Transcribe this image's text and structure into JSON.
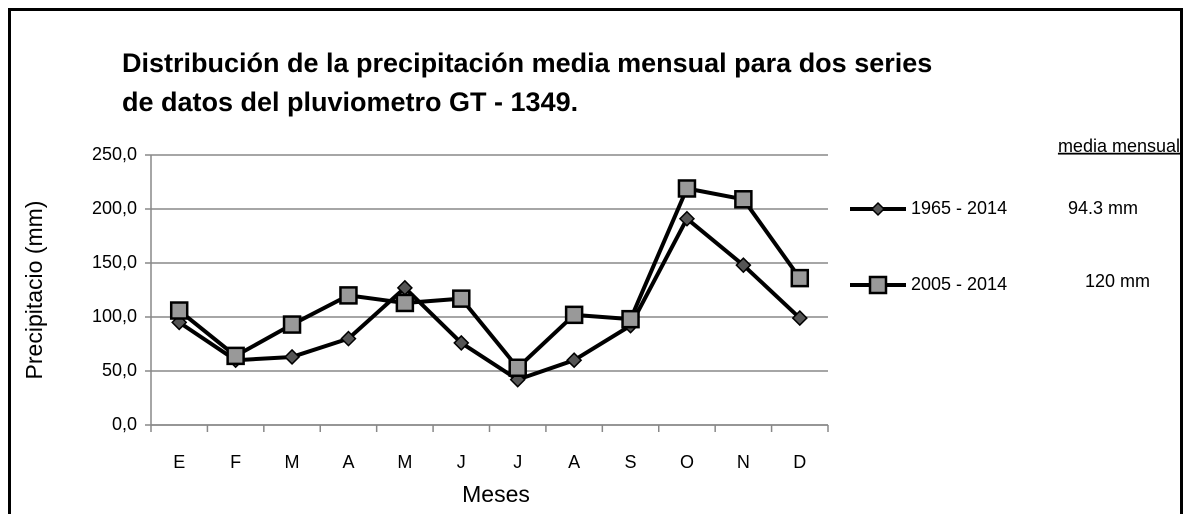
{
  "chart_data": {
    "type": "line",
    "title": [
      "Distribución de la precipitación media mensual para dos  series",
      "de datos  del pluviometro GT - 1349."
    ],
    "x_label": "Meses",
    "y_label": "Precipitacio (mm)",
    "categories": [
      "E",
      "F",
      "M",
      "A",
      "M",
      "J",
      "J",
      "A",
      "S",
      "O",
      "N",
      "D"
    ],
    "ylim": [
      0,
      250
    ],
    "yticks": [
      {
        "value": 0,
        "label": "0,0"
      },
      {
        "value": 50,
        "label": "50,0"
      },
      {
        "value": 100,
        "label": "100,0"
      },
      {
        "value": 150,
        "label": "150,0"
      },
      {
        "value": 200,
        "label": "200,0"
      },
      {
        "value": 250,
        "label": "250,0"
      }
    ],
    "grid": true,
    "legend_header": "media mensual",
    "series": [
      {
        "name": "1965 - 2014",
        "marker": "diamond",
        "color": "#000000",
        "mean_label": "94.3 mm",
        "values": [
          95,
          60,
          63,
          80,
          127,
          76,
          42,
          60,
          92,
          191,
          148,
          99
        ]
      },
      {
        "name": "2005 - 2014",
        "marker": "square",
        "color": "#000000",
        "mean_label": "120 mm",
        "values": [
          106,
          64,
          93,
          120,
          113,
          117,
          53,
          102,
          98,
          219,
          209,
          136
        ]
      }
    ]
  }
}
